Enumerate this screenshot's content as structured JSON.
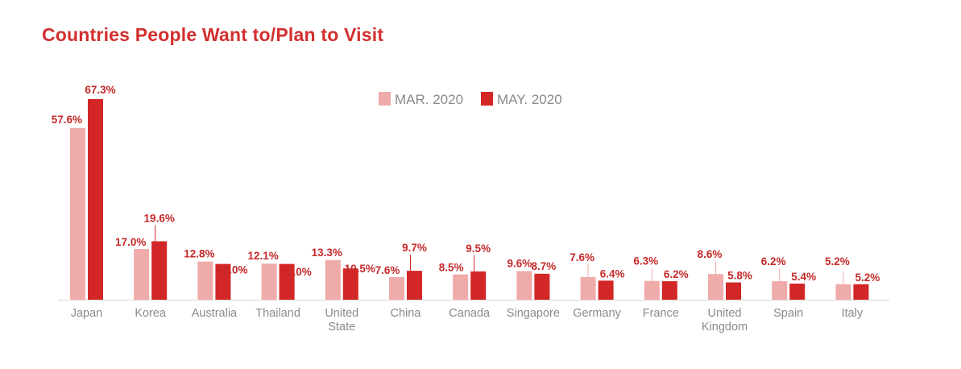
{
  "chart_data": {
    "type": "bar",
    "title": "Countries People Want to/Plan to Visit",
    "xlabel": "",
    "ylabel": "",
    "ylim": [
      0,
      70
    ],
    "grid": false,
    "legend_position": "top-center",
    "categories": [
      [
        "Japan"
      ],
      [
        "Korea"
      ],
      [
        "Australia"
      ],
      [
        "Thailand"
      ],
      [
        "United",
        "State"
      ],
      [
        "China"
      ],
      [
        "Canada"
      ],
      [
        "Singapore"
      ],
      [
        "Germany"
      ],
      [
        "France"
      ],
      [
        "United",
        "Kingdom"
      ],
      [
        "Spain"
      ],
      [
        "Italy"
      ]
    ],
    "series": [
      {
        "name": "MAR. 2020",
        "color": "#efaaaa",
        "values": [
          57.6,
          17.0,
          12.8,
          12.1,
          13.3,
          7.6,
          8.5,
          9.6,
          7.6,
          6.3,
          8.6,
          6.2,
          5.2
        ],
        "labels": [
          "57.6%",
          "17.0%",
          "12.8%",
          "12.1%",
          "13.3%",
          "7.6%",
          "8.5%",
          "9.6%",
          "7.6%",
          "6.3%",
          "8.6%",
          "6.2%",
          "5.2%"
        ]
      },
      {
        "name": "MAY. 2020",
        "color": "#d32626",
        "values": [
          67.3,
          19.6,
          12.0,
          12.0,
          10.5,
          9.7,
          9.5,
          8.7,
          6.4,
          6.2,
          5.8,
          5.4,
          5.2
        ],
        "labels": [
          "67.3%",
          "19.6%",
          "12.0%",
          "12.0%",
          "10.5%",
          "9.7%",
          "9.5%",
          "8.7%",
          "6.4%",
          "6.2%",
          "5.8%",
          "5.4%",
          "5.2%"
        ]
      }
    ]
  }
}
